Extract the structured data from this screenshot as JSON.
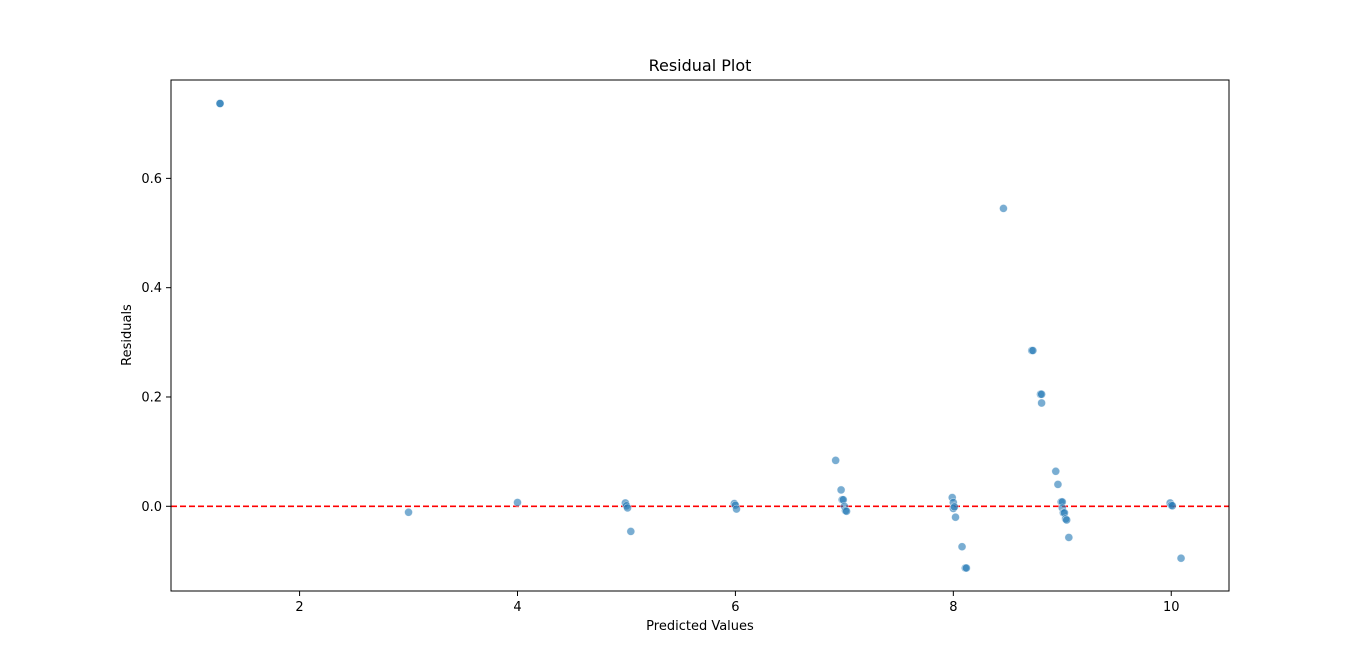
{
  "chart_data": {
    "type": "scatter",
    "title": "Residual Plot",
    "xlabel": "Predicted Values",
    "ylabel": "Residuals",
    "xlim": [
      0.82,
      10.53
    ],
    "ylim": [
      -0.155,
      0.78
    ],
    "xticks": [
      2,
      4,
      6,
      8,
      10
    ],
    "xtick_labels": [
      "2",
      "4",
      "6",
      "8",
      "10"
    ],
    "yticks": [
      0.0,
      0.2,
      0.4,
      0.6
    ],
    "ytick_labels": [
      "0.0",
      "0.2",
      "0.4",
      "0.6"
    ],
    "grid": false,
    "point_color": "#1f77b4",
    "point_alpha": 0.6,
    "reference_line": {
      "y": 0.0,
      "color": "#ff0000",
      "style": "dashed"
    },
    "points": [
      {
        "x": 1.27,
        "y": 0.737
      },
      {
        "x": 1.27,
        "y": 0.737
      },
      {
        "x": 3.0,
        "y": -0.011
      },
      {
        "x": 4.0,
        "y": 0.007
      },
      {
        "x": 4.99,
        "y": 0.006
      },
      {
        "x": 5.0,
        "y": 0.001
      },
      {
        "x": 5.01,
        "y": -0.003
      },
      {
        "x": 5.04,
        "y": -0.046
      },
      {
        "x": 5.99,
        "y": 0.005
      },
      {
        "x": 6.0,
        "y": 0.002
      },
      {
        "x": 6.01,
        "y": -0.005
      },
      {
        "x": 6.92,
        "y": 0.084
      },
      {
        "x": 6.97,
        "y": 0.03
      },
      {
        "x": 6.98,
        "y": 0.012
      },
      {
        "x": 6.99,
        "y": 0.012
      },
      {
        "x": 7.0,
        "y": 0.0
      },
      {
        "x": 7.01,
        "y": -0.008
      },
      {
        "x": 7.02,
        "y": -0.009
      },
      {
        "x": 7.99,
        "y": 0.016
      },
      {
        "x": 8.0,
        "y": 0.007
      },
      {
        "x": 8.0,
        "y": -0.004
      },
      {
        "x": 8.01,
        "y": -0.001
      },
      {
        "x": 8.02,
        "y": -0.02
      },
      {
        "x": 8.08,
        "y": -0.074
      },
      {
        "x": 8.11,
        "y": -0.113
      },
      {
        "x": 8.12,
        "y": -0.113
      },
      {
        "x": 8.46,
        "y": 0.545
      },
      {
        "x": 8.72,
        "y": 0.285
      },
      {
        "x": 8.73,
        "y": 0.285
      },
      {
        "x": 8.8,
        "y": 0.205
      },
      {
        "x": 8.81,
        "y": 0.205
      },
      {
        "x": 8.81,
        "y": 0.189
      },
      {
        "x": 8.94,
        "y": 0.064
      },
      {
        "x": 8.96,
        "y": 0.04
      },
      {
        "x": 8.99,
        "y": 0.008
      },
      {
        "x": 9.0,
        "y": 0.008
      },
      {
        "x": 9.0,
        "y": -0.003
      },
      {
        "x": 9.01,
        "y": -0.012
      },
      {
        "x": 9.02,
        "y": -0.012
      },
      {
        "x": 9.03,
        "y": -0.023
      },
      {
        "x": 9.04,
        "y": -0.025
      },
      {
        "x": 9.06,
        "y": -0.057
      },
      {
        "x": 9.99,
        "y": 0.006
      },
      {
        "x": 10.0,
        "y": 0.002
      },
      {
        "x": 10.01,
        "y": 0.001
      },
      {
        "x": 10.09,
        "y": -0.095
      }
    ]
  }
}
